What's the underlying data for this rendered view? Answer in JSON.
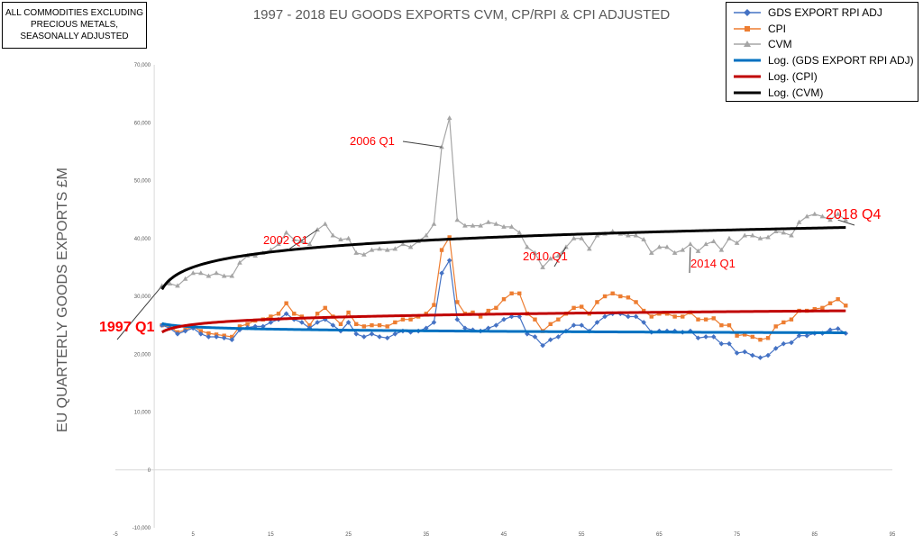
{
  "chart_data": {
    "type": "line",
    "title": "1997 - 2018 EU GOODS EXPORTS CVM, CP/RPI & CPI ADJUSTED",
    "ylabel": "EU QUARTERLY GOODS EXPORTS £M",
    "xlabel": "",
    "xlim": [
      -5,
      95
    ],
    "ylim": [
      -10000,
      70000
    ],
    "x_ticks": [
      -5,
      5,
      15,
      25,
      35,
      45,
      55,
      65,
      75,
      85,
      95
    ],
    "y_ticks": [
      -10000,
      0,
      10000,
      20000,
      30000,
      40000,
      50000,
      60000,
      70000
    ],
    "x_tick_labels": [
      "-5",
      "5",
      "15",
      "25",
      "35",
      "45",
      "55",
      "65",
      "75",
      "85",
      "95"
    ],
    "y_tick_labels": [
      "-10,000",
      "0",
      "10,000",
      "20,000",
      "30,000",
      "40,000",
      "50,000",
      "60,000",
      "70,000"
    ],
    "grid": false,
    "legend_position": "top-right",
    "note_lines": [
      "ALL COMMODITIES EXCLUDING",
      "PRECIOUS METALS,",
      "SEASONALLY ADJUSTED"
    ],
    "series": [
      {
        "name": "GDS EXPORT RPI ADJ",
        "color": "#4472C4",
        "marker": "diamond",
        "values": [
          25000,
          24500,
          23500,
          24000,
          24500,
          23500,
          23000,
          23000,
          22800,
          22500,
          24200,
          24600,
          24800,
          24800,
          25500,
          26000,
          27000,
          26000,
          25500,
          24500,
          25500,
          26000,
          25000,
          24000,
          25500,
          23500,
          23000,
          23500,
          23000,
          22800,
          23500,
          24000,
          23800,
          24000,
          24500,
          25500,
          34000,
          36200,
          26000,
          24500,
          24200,
          24000,
          24500,
          25000,
          26000,
          26500,
          26500,
          23500,
          23000,
          21500,
          22500,
          23000,
          24000,
          25000,
          25000,
          24000,
          25500,
          26500,
          27000,
          27000,
          26500,
          26500,
          25500,
          23800,
          24000,
          24000,
          24000,
          23800,
          24000,
          22800,
          23000,
          23000,
          21800,
          21800,
          20200,
          20400,
          19800,
          19400,
          19800,
          21000,
          21800,
          22000,
          23200,
          23200,
          23600,
          23600,
          24200,
          24400,
          23600
        ]
      },
      {
        "name": "CPI",
        "color": "#ED7D31",
        "marker": "square",
        "values": [
          25000,
          24800,
          23800,
          24200,
          24800,
          24000,
          23600,
          23400,
          23200,
          23000,
          24800,
          25200,
          25800,
          26000,
          26500,
          27000,
          28800,
          27000,
          26500,
          25000,
          27000,
          28000,
          26500,
          25200,
          27200,
          25200,
          24800,
          25000,
          25000,
          24800,
          25500,
          26000,
          26000,
          26500,
          27000,
          28500,
          38000,
          40200,
          29000,
          27000,
          27200,
          26500,
          27500,
          28000,
          29500,
          30500,
          30500,
          27000,
          26000,
          24000,
          25200,
          26000,
          27000,
          28000,
          28200,
          27000,
          29000,
          30000,
          30500,
          30000,
          29800,
          29000,
          27500,
          26500,
          27000,
          27000,
          26500,
          26500,
          27200,
          26000,
          26000,
          26200,
          25000,
          25000,
          23200,
          23400,
          23000,
          22500,
          22800,
          24800,
          25500,
          26000,
          27500,
          27500,
          27800,
          28000,
          28800,
          29500,
          28400
        ]
      },
      {
        "name": "CVM",
        "color": "#A5A5A5",
        "marker": "triangle",
        "values": [
          31800,
          32200,
          31800,
          33000,
          34000,
          34000,
          33500,
          34000,
          33500,
          33500,
          35800,
          37000,
          37000,
          37500,
          38000,
          39000,
          41000,
          39800,
          39500,
          39000,
          41500,
          42500,
          40500,
          39800,
          40000,
          37500,
          37200,
          38000,
          38200,
          38000,
          38200,
          39000,
          38500,
          39500,
          40500,
          42500,
          55800,
          60800,
          43200,
          42200,
          42200,
          42200,
          42800,
          42500,
          42000,
          42000,
          41000,
          38500,
          37500,
          35000,
          36500,
          37000,
          38500,
          40000,
          40000,
          38200,
          40500,
          40800,
          41200,
          40800,
          40500,
          40500,
          39800,
          37500,
          38500,
          38500,
          37500,
          38000,
          39000,
          37800,
          39000,
          39500,
          38000,
          40000,
          39200,
          40500,
          40500,
          40000,
          40200,
          41200,
          41000,
          40500,
          42800,
          43800,
          44200,
          43800,
          43200,
          44200,
          43200
        ]
      },
      {
        "name": "Log. (GDS EXPORT RPI ADJ)",
        "color": "#0070C0",
        "kind": "log-trend",
        "from": 1,
        "to": 89,
        "start_value": 25300,
        "end_value": 23700
      },
      {
        "name": "Log. (CPI)",
        "color": "#C00000",
        "kind": "log-trend",
        "from": 1,
        "to": 89,
        "start_value": 23800,
        "end_value": 27500
      },
      {
        "name": "Log. (CVM)",
        "color": "#000000",
        "kind": "log-trend",
        "from": 1,
        "to": 89,
        "start_value": 31200,
        "end_value": 41900
      }
    ],
    "annotations": [
      {
        "text": "1997 Q1",
        "x": 1,
        "y": 31800,
        "color": "#FF0000",
        "bold": true
      },
      {
        "text": "2002 Q1",
        "x": 21,
        "y": 41500,
        "color": "#FF0000",
        "bold": false
      },
      {
        "text": "2006 Q1",
        "x": 37,
        "y": 55800,
        "color": "#FF0000",
        "bold": false
      },
      {
        "text": "2010 Q1",
        "x": 53,
        "y": 38500,
        "color": "#FF0000",
        "bold": false
      },
      {
        "text": "2014 Q1",
        "x": 69,
        "y": 38500,
        "color": "#FF0000",
        "bold": false
      },
      {
        "text": "2018 Q4",
        "x": 88,
        "y": 43200,
        "color": "#FF0000",
        "bold": false
      }
    ]
  }
}
